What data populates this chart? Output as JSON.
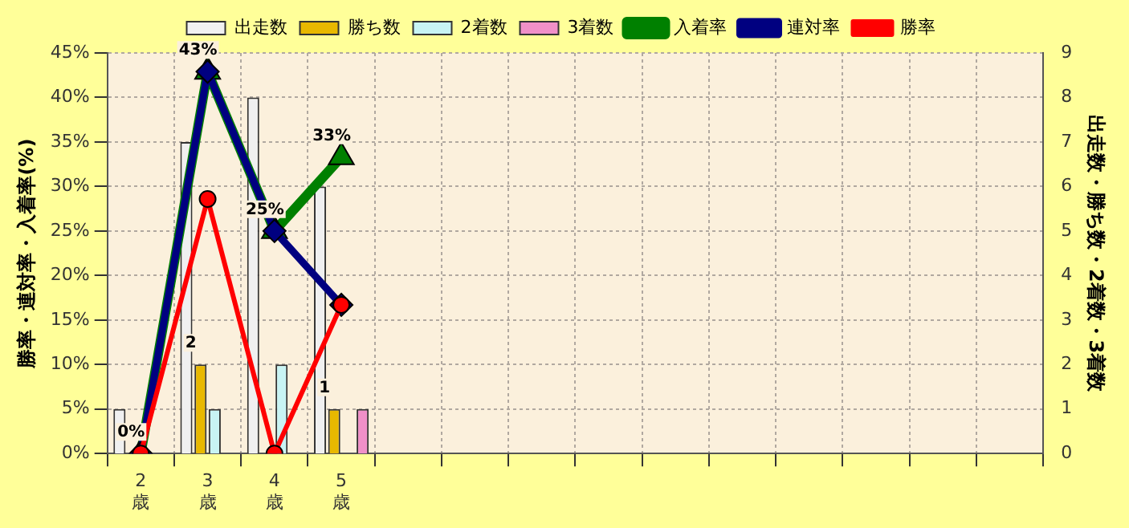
{
  "chart_data": {
    "type": "bar",
    "categories": [
      "2\n歳",
      "3\n歳",
      "4\n歳",
      "5\n歳",
      null,
      null,
      null,
      null,
      null,
      null,
      null,
      null,
      null,
      null
    ],
    "ylabel": "勝率・連対率・入着率(%)",
    "y2label": "出走数・勝ち数・2着数・3着数",
    "ylim": [
      0,
      45
    ],
    "yticks": [
      {
        "value": 0,
        "label": "0%"
      },
      {
        "value": 5,
        "label": "5%"
      },
      {
        "value": 10,
        "label": "10%"
      },
      {
        "value": 15,
        "label": "15%"
      },
      {
        "value": 20,
        "label": "20%"
      },
      {
        "value": 25,
        "label": "25%"
      },
      {
        "value": 30,
        "label": "30%"
      },
      {
        "value": 35,
        "label": "35%"
      },
      {
        "value": 40,
        "label": "40%"
      },
      {
        "value": 45,
        "label": "45%"
      }
    ],
    "y2lim": [
      0,
      9
    ],
    "y2ticks": [
      0,
      1,
      2,
      3,
      4,
      5,
      6,
      7,
      8,
      9
    ],
    "grid": true,
    "legend": "top",
    "series": [
      {
        "name": "出走数",
        "axis": "y2",
        "color": "#f0f0f0",
        "values": [
          1,
          7,
          8,
          6,
          null,
          null,
          null,
          null,
          null,
          null,
          null,
          null,
          null,
          null
        ]
      },
      {
        "name": "勝ち数",
        "axis": "y2",
        "color": "#e8b800",
        "values": [
          0,
          2,
          0,
          1,
          null,
          null,
          null,
          null,
          null,
          null,
          null,
          null,
          null,
          null
        ],
        "value_labels": [
          null,
          "2",
          null,
          "1",
          null,
          null,
          null,
          null,
          null,
          null,
          null,
          null,
          null,
          null
        ]
      },
      {
        "name": "2着数",
        "axis": "y2",
        "color": "#c8f4f4",
        "values": [
          0,
          1,
          2,
          0,
          null,
          null,
          null,
          null,
          null,
          null,
          null,
          null,
          null,
          null
        ]
      },
      {
        "name": "3着数",
        "axis": "y2",
        "color": "#f090c8",
        "values": [
          0,
          0,
          0,
          1,
          null,
          null,
          null,
          null,
          null,
          null,
          null,
          null,
          null,
          null
        ]
      },
      {
        "name": "入着率",
        "type": "line",
        "marker": "triangle",
        "color": "#008000",
        "values": [
          0,
          42.9,
          25,
          33.3,
          null,
          null,
          null,
          null,
          null,
          null,
          null,
          null,
          null,
          null
        ],
        "value_labels": [
          "0%",
          "43%",
          "25%",
          "33%",
          null,
          null,
          null,
          null,
          null,
          null,
          null,
          null,
          null,
          null
        ]
      },
      {
        "name": "連対率",
        "type": "line",
        "marker": "diamond",
        "color": "#000080",
        "values": [
          0,
          42.9,
          25,
          16.7,
          null,
          null,
          null,
          null,
          null,
          null,
          null,
          null,
          null,
          null
        ]
      },
      {
        "name": "勝率",
        "type": "line",
        "marker": "circle",
        "color": "#ff0000",
        "values": [
          0,
          28.6,
          0,
          16.7,
          null,
          null,
          null,
          null,
          null,
          null,
          null,
          null,
          null,
          null
        ]
      }
    ]
  }
}
